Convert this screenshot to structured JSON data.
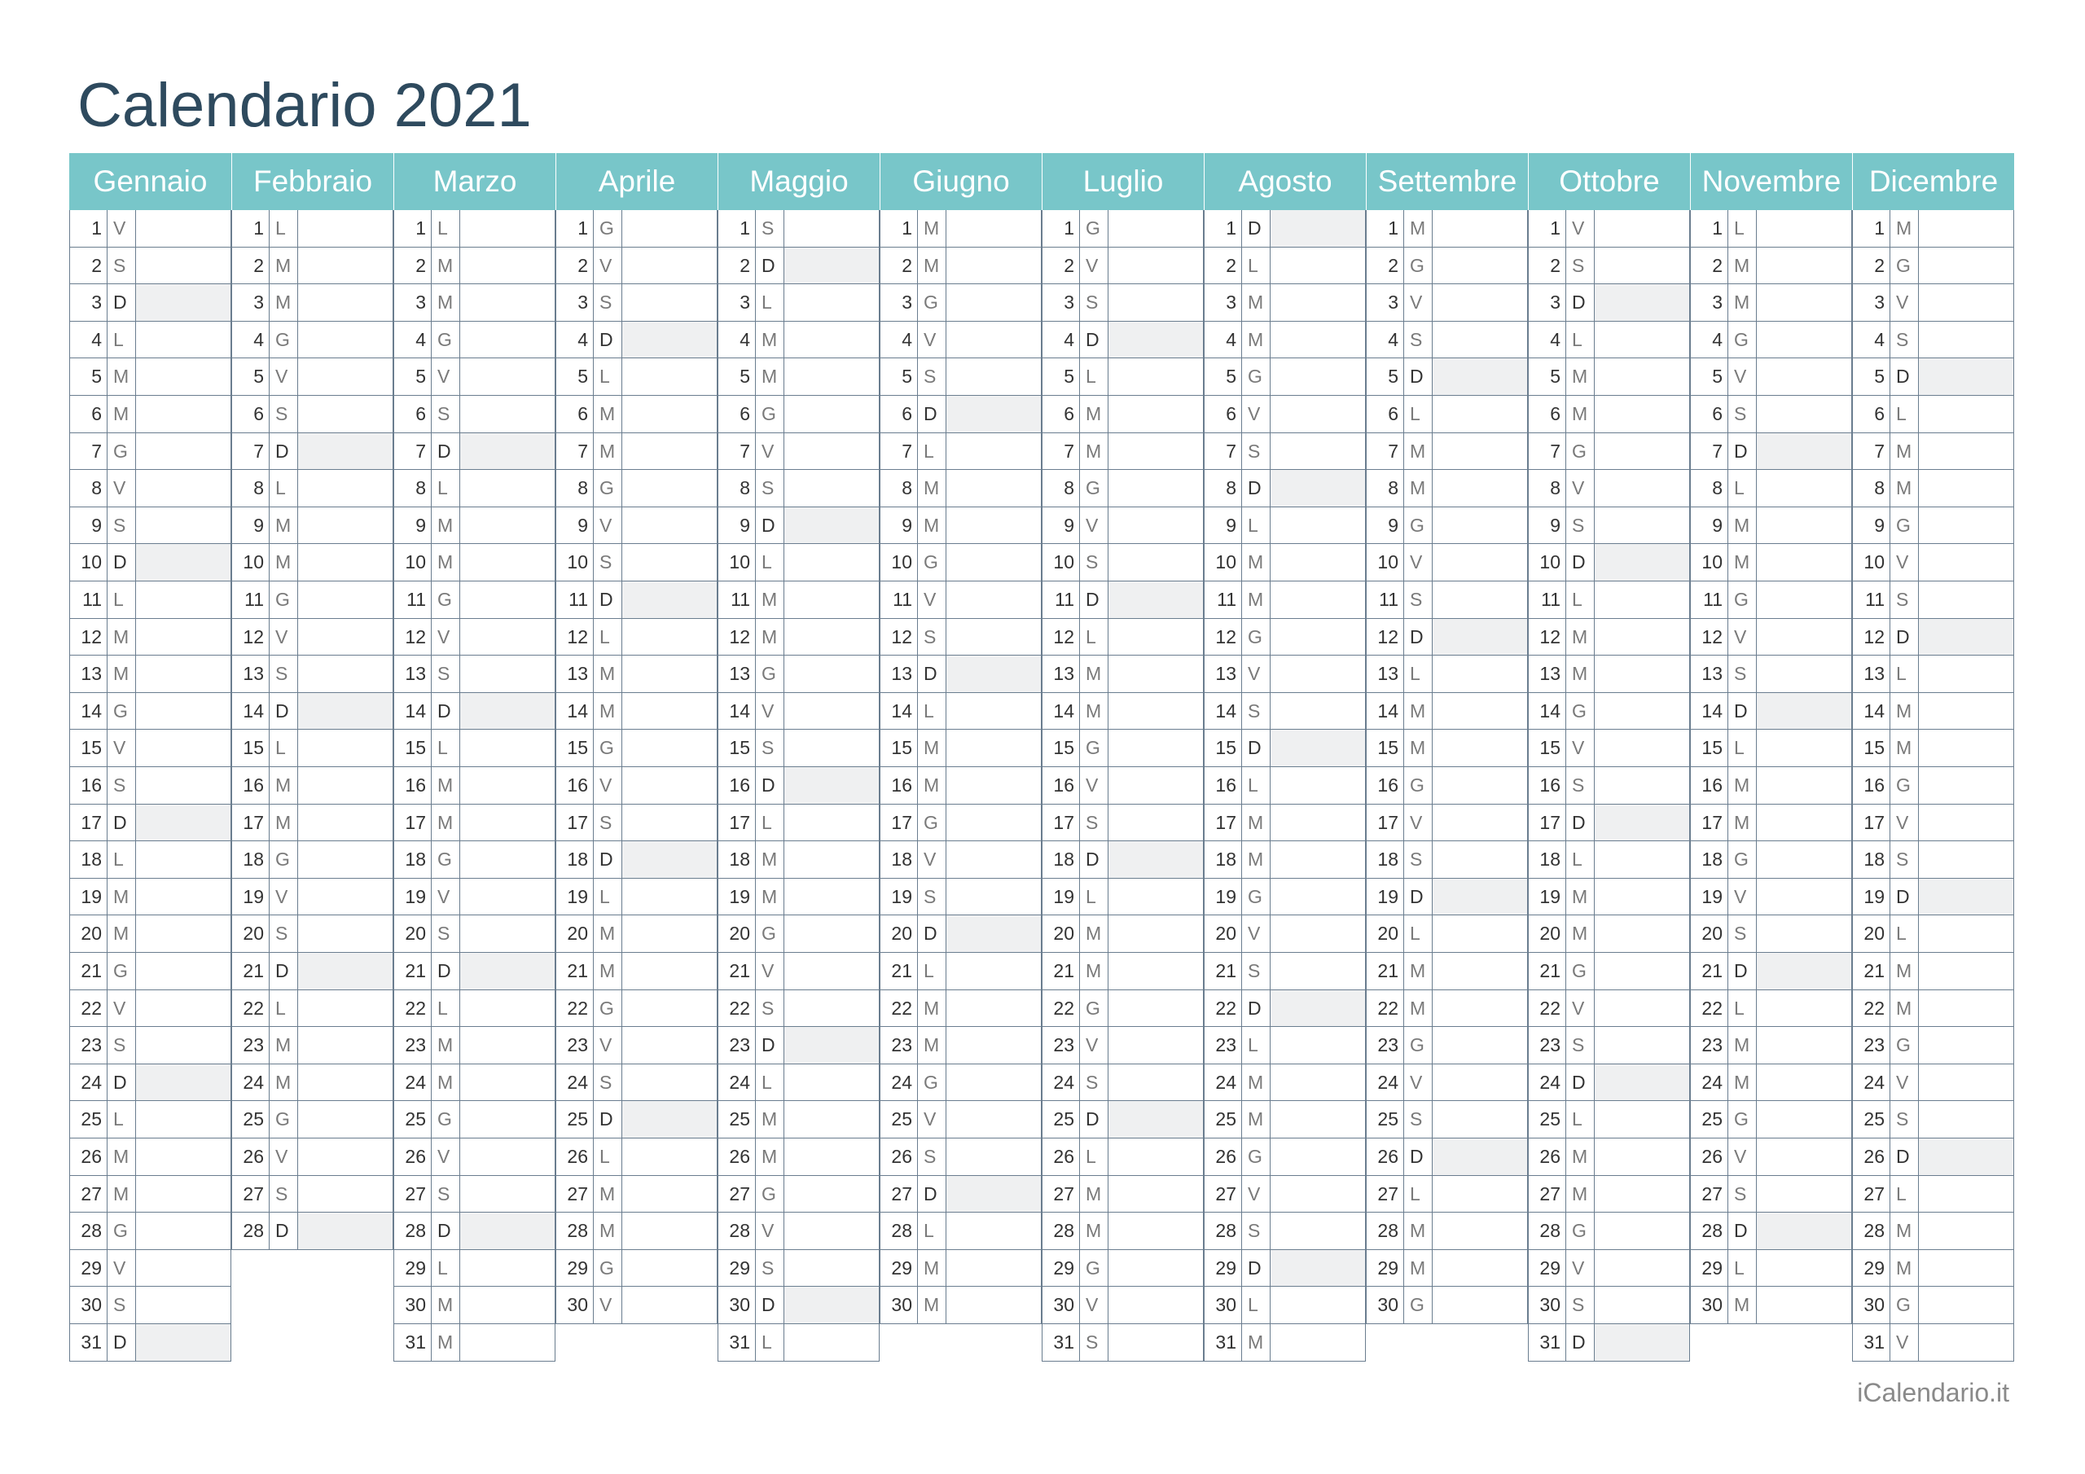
{
  "title": "Calendario 2021",
  "footer": "iCalendario.it",
  "colors": {
    "header_bg": "#78c6c9",
    "weekend_bg": "#eff0f1",
    "title": "#2e4a5e",
    "grid": "#6a7d8f"
  },
  "year": 2021,
  "months": [
    {
      "name": "Gennaio",
      "days": 31,
      "first_weekday_index": 5
    },
    {
      "name": "Febbraio",
      "days": 28,
      "first_weekday_index": 1
    },
    {
      "name": "Marzo",
      "days": 31,
      "first_weekday_index": 1
    },
    {
      "name": "Aprile",
      "days": 30,
      "first_weekday_index": 4
    },
    {
      "name": "Maggio",
      "days": 31,
      "first_weekday_index": 6
    },
    {
      "name": "Giugno",
      "days": 30,
      "first_weekday_index": 2
    },
    {
      "name": "Luglio",
      "days": 31,
      "first_weekday_index": 4
    },
    {
      "name": "Agosto",
      "days": 31,
      "first_weekday_index": 0
    },
    {
      "name": "Settembre",
      "days": 30,
      "first_weekday_index": 3
    },
    {
      "name": "Ottobre",
      "days": 31,
      "first_weekday_index": 5
    },
    {
      "name": "Novembre",
      "days": 30,
      "first_weekday_index": 1
    },
    {
      "name": "Dicembre",
      "days": 31,
      "first_weekday_index": 3
    }
  ],
  "weekday_letters": [
    "D",
    "L",
    "M",
    "M",
    "G",
    "V",
    "S"
  ]
}
